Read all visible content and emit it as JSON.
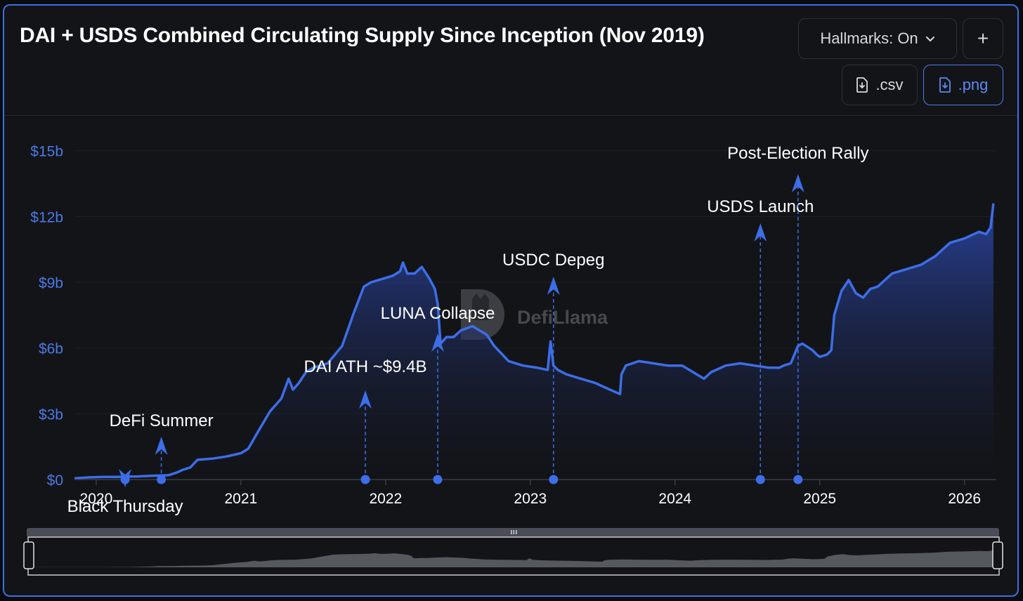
{
  "header": {
    "title": "DAI + USDS Combined Circulating Supply Since Inception (Nov 2019)",
    "hallmarks_label": "Hallmarks: On",
    "add_label": "+",
    "csv_label": ".csv",
    "png_label": ".png"
  },
  "watermark": "DefiLlama",
  "colors": {
    "accent": "#3f6fe0",
    "line": "#3d6ee8",
    "text": "#ffffff",
    "tick": "#4b79e6"
  },
  "icons": {
    "dropdown": "chevron-down-icon",
    "download": "file-download-icon",
    "watermark_logo": "llama-logo-icon"
  },
  "chart_data": {
    "type": "area",
    "title": "DAI + USDS Combined Circulating Supply Since Inception (Nov 2019)",
    "y_ticks": [
      "$0",
      "$3b",
      "$6b",
      "$9b",
      "$12b",
      "$15b"
    ],
    "y_tick_values": [
      0,
      3,
      6,
      9,
      12,
      15
    ],
    "ylim": [
      0,
      15.6
    ],
    "x_ticks": [
      "2020",
      "2021",
      "2022",
      "2023",
      "2024",
      "2025",
      "2026"
    ],
    "x_tick_values": [
      2020.0,
      2021.0,
      2022.0,
      2023.0,
      2024.0,
      2025.0,
      2026.0
    ],
    "xlim": [
      2019.85,
      2026.22
    ],
    "y_unit": "billions USD",
    "grid": true,
    "series": [
      {
        "x": [
          2019.85,
          2019.95,
          2020.05,
          2020.15,
          2020.2,
          2020.28,
          2020.35,
          2020.42,
          2020.5,
          2020.55,
          2020.6,
          2020.65,
          2020.7,
          2020.8,
          2020.9,
          2021.0,
          2021.05,
          2021.12,
          2021.2,
          2021.28,
          2021.33,
          2021.36,
          2021.4,
          2021.45,
          2021.5,
          2021.6,
          2021.7,
          2021.78,
          2021.85,
          2021.9,
          2021.95,
          2022.0,
          2022.05,
          2022.1,
          2022.12,
          2022.15,
          2022.2,
          2022.25,
          2022.3,
          2022.34,
          2022.36,
          2022.38,
          2022.42,
          2022.47,
          2022.52,
          2022.6,
          2022.65,
          2022.7,
          2022.75,
          2022.85,
          2022.95,
          2023.05,
          2023.12,
          2023.14,
          2023.16,
          2023.19,
          2023.25,
          2023.35,
          2023.45,
          2023.55,
          2023.62,
          2023.63,
          2023.66,
          2023.75,
          2023.85,
          2023.95,
          2024.05,
          2024.15,
          2024.2,
          2024.25,
          2024.35,
          2024.45,
          2024.55,
          2024.65,
          2024.72,
          2024.75,
          2024.8,
          2024.85,
          2024.88,
          2024.95,
          2024.98,
          2025.0,
          2025.05,
          2025.08,
          2025.1,
          2025.15,
          2025.2,
          2025.25,
          2025.3,
          2025.35,
          2025.4,
          2025.5,
          2025.6,
          2025.7,
          2025.8,
          2025.9,
          2026.0,
          2026.1,
          2026.15,
          2026.18,
          2026.2
        ],
        "y": [
          0.05,
          0.1,
          0.12,
          0.12,
          0.13,
          0.14,
          0.16,
          0.18,
          0.2,
          0.3,
          0.45,
          0.55,
          0.9,
          0.95,
          1.05,
          1.2,
          1.4,
          2.2,
          3.1,
          3.7,
          4.6,
          4.1,
          4.4,
          4.9,
          5.1,
          5.3,
          6.1,
          7.6,
          8.8,
          9.0,
          9.1,
          9.2,
          9.3,
          9.5,
          9.9,
          9.4,
          9.4,
          9.7,
          9.2,
          8.7,
          8.0,
          6.2,
          6.5,
          6.5,
          6.8,
          7.0,
          6.8,
          6.6,
          6.1,
          5.4,
          5.2,
          5.1,
          5.0,
          6.3,
          5.2,
          5.0,
          4.8,
          4.6,
          4.4,
          4.1,
          3.9,
          4.8,
          5.2,
          5.4,
          5.3,
          5.2,
          5.2,
          4.8,
          4.6,
          4.9,
          5.2,
          5.3,
          5.2,
          5.1,
          5.1,
          5.2,
          5.3,
          6.1,
          6.2,
          5.9,
          5.7,
          5.6,
          5.7,
          5.9,
          7.5,
          8.6,
          9.1,
          8.5,
          8.3,
          8.7,
          8.8,
          9.4,
          9.6,
          9.8,
          10.2,
          10.8,
          11.0,
          11.3,
          11.2,
          11.5,
          12.6
        ]
      }
    ],
    "annotations": [
      {
        "label": "Black Thursday",
        "x": 2020.2,
        "direction": "down"
      },
      {
        "label": "DeFi Summer",
        "x": 2020.45,
        "direction": "up"
      },
      {
        "label": "DAI ATH ~$9.4B",
        "x": 2021.86,
        "direction": "up"
      },
      {
        "label": "LUNA Collapse",
        "x": 2022.36,
        "direction": "up"
      },
      {
        "label": "USDC Depeg",
        "x": 2023.16,
        "direction": "up"
      },
      {
        "label": "USDS Launch",
        "x": 2024.59,
        "direction": "up"
      },
      {
        "label": "Post-Election Rally",
        "x": 2024.85,
        "direction": "up"
      }
    ],
    "navigator": true
  }
}
